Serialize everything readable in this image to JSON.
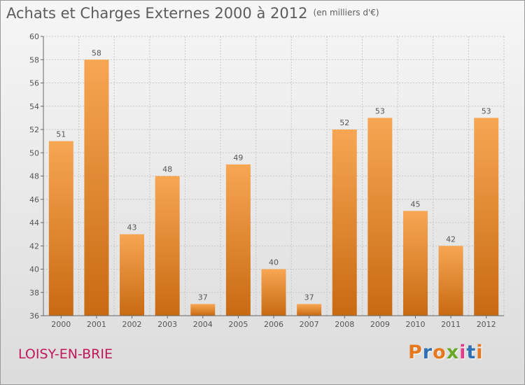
{
  "header": {
    "title": "Achats et Charges Externes 2000 à 2012",
    "unit": "(en milliers d'€)"
  },
  "location": "LOISY-EN-BRIE",
  "brand": {
    "letters": [
      "P",
      "r",
      "o",
      "x",
      "i",
      "t",
      "i"
    ],
    "colors": [
      "#e6781e",
      "#2f6fb5",
      "#e6781e",
      "#6aa82c",
      "#e03c8a",
      "#2f6fb5",
      "#e6781e"
    ]
  },
  "colors": {
    "bar_top": "#f7a653",
    "bar_bottom": "#c86a12",
    "grid": "#c8c8c8",
    "axis": "#666666"
  },
  "chart_data": {
    "type": "bar",
    "title": "Achats et Charges Externes 2000 à 2012",
    "xlabel": "",
    "ylabel": "",
    "categories": [
      "2000",
      "2001",
      "2002",
      "2003",
      "2004",
      "2005",
      "2006",
      "2007",
      "2008",
      "2009",
      "2010",
      "2011",
      "2012"
    ],
    "values": [
      51,
      58,
      43,
      48,
      37,
      49,
      40,
      37,
      52,
      53,
      45,
      42,
      53
    ],
    "ylim": [
      36,
      60
    ],
    "yticks": [
      36,
      38,
      40,
      42,
      44,
      46,
      48,
      50,
      52,
      54,
      56,
      58,
      60
    ],
    "grid": true,
    "legend": "none"
  }
}
